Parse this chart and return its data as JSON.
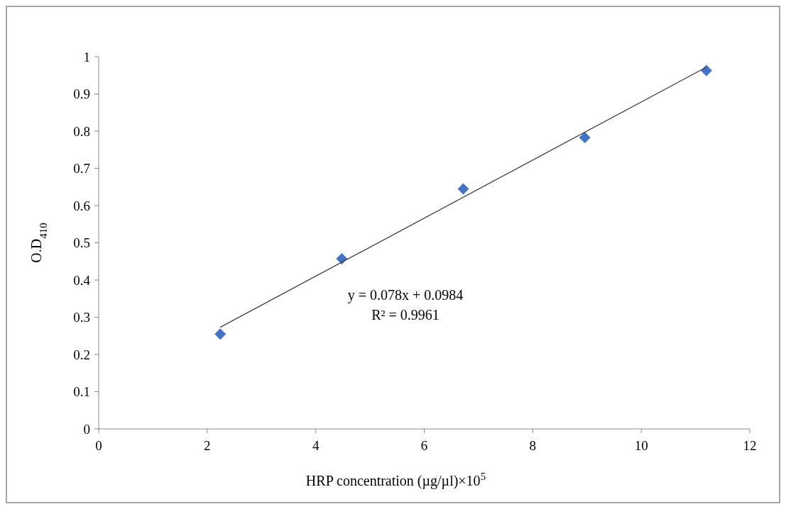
{
  "chart_data": {
    "type": "scatter",
    "xlabel": "HRP concentration  (µg/µl)×10$^{5}$",
    "ylabel": "O.D$_{410}$",
    "xlim": [
      0,
      12
    ],
    "xticks": [
      0,
      2,
      4,
      6,
      8,
      10,
      12
    ],
    "ylim": [
      0,
      1
    ],
    "yticks": [
      0,
      0.1,
      0.2,
      0.3,
      0.4,
      0.5,
      0.6,
      0.7,
      0.8,
      0.9,
      1
    ],
    "grid": false,
    "marker": "diamond",
    "annotations": [
      "y = 0.078x + 0.0984",
      "R² = 0.9961"
    ],
    "series": [
      {
        "color": "#4472c4",
        "x": [
          2.24,
          4.48,
          6.72,
          8.96,
          11.2
        ],
        "values": [
          0.255,
          0.457,
          0.645,
          0.783,
          0.963
        ]
      },
      {
        "type": "line",
        "color": "#404040",
        "marker": "none",
        "x": [
          2.24,
          11.2
        ],
        "values": [
          0.273,
          0.972
        ]
      }
    ]
  }
}
